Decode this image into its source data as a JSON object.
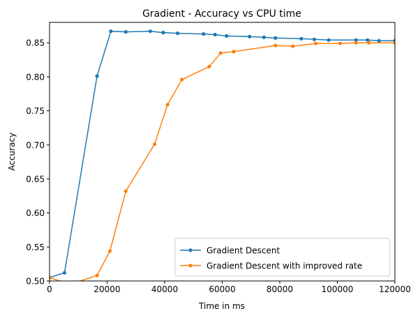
{
  "chart_data": {
    "type": "line",
    "title": "Gradient - Accuracy vs CPU time",
    "xlabel": "Time in ms",
    "ylabel": "Accuracy",
    "xlim": [
      0,
      120000
    ],
    "ylim": [
      0.5,
      0.88
    ],
    "xticks": [
      0,
      20000,
      40000,
      60000,
      80000,
      100000,
      120000
    ],
    "yticks": [
      0.5,
      0.55,
      0.6,
      0.65,
      0.7,
      0.75,
      0.8,
      0.85
    ],
    "xtick_labels": [
      "0",
      "20000",
      "40000",
      "60000",
      "80000",
      "100000",
      "120000"
    ],
    "ytick_labels": [
      "0.50",
      "0.55",
      "0.60",
      "0.65",
      "0.70",
      "0.75",
      "0.80",
      "0.85"
    ],
    "grid": false,
    "legend_position": "lower-right",
    "series": [
      {
        "name": "Gradient Descent",
        "color": "#1f77b4",
        "points": [
          [
            0,
            0.505
          ],
          [
            5200,
            0.512
          ],
          [
            16500,
            0.801
          ],
          [
            21300,
            0.867
          ],
          [
            26500,
            0.866
          ],
          [
            35000,
            0.867
          ],
          [
            39500,
            0.865
          ],
          [
            44500,
            0.864
          ],
          [
            53500,
            0.863
          ],
          [
            57500,
            0.862
          ],
          [
            61500,
            0.86
          ],
          [
            69500,
            0.859
          ],
          [
            74500,
            0.858
          ],
          [
            78500,
            0.857
          ],
          [
            87500,
            0.856
          ],
          [
            92000,
            0.855
          ],
          [
            97000,
            0.854
          ],
          [
            106500,
            0.854
          ],
          [
            110500,
            0.854
          ],
          [
            114500,
            0.853
          ],
          [
            120000,
            0.853
          ]
        ]
      },
      {
        "name": "Gradient Descent with improved rate",
        "color": "#ff7f0e",
        "points": [
          [
            0,
            0.505
          ],
          [
            7000,
            0.495
          ],
          [
            16500,
            0.508
          ],
          [
            21000,
            0.544
          ],
          [
            26500,
            0.632
          ],
          [
            36500,
            0.701
          ],
          [
            41000,
            0.759
          ],
          [
            46000,
            0.796
          ],
          [
            55500,
            0.815
          ],
          [
            59500,
            0.835
          ],
          [
            64000,
            0.837
          ],
          [
            78500,
            0.846
          ],
          [
            84500,
            0.845
          ],
          [
            92500,
            0.849
          ],
          [
            101000,
            0.849
          ],
          [
            106500,
            0.85
          ],
          [
            111000,
            0.85
          ],
          [
            120000,
            0.85
          ]
        ]
      }
    ]
  }
}
